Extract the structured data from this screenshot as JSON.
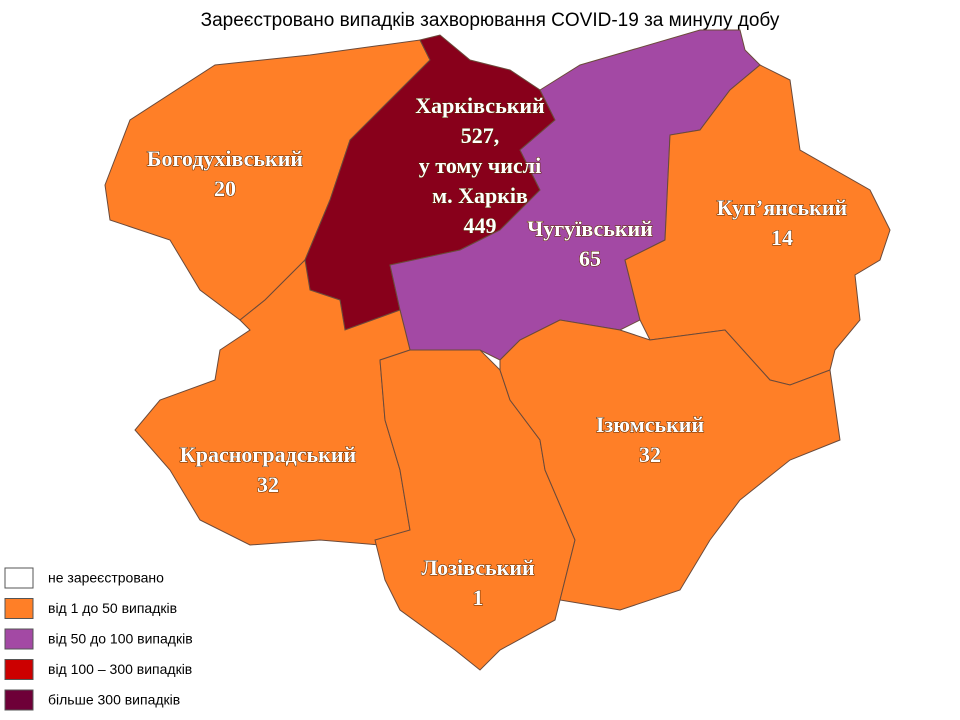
{
  "title": "Зареєстровано випадків захворювання COVID-19 за минулу добу",
  "regions": [
    {
      "name": "Богодухівський",
      "cases": 20,
      "color": "#ff7f27"
    },
    {
      "name": "Харківський",
      "cases": "527,",
      "note": "у тому числі",
      "city": "м. Харків",
      "city_cases": 449,
      "color": "#88001b"
    },
    {
      "name": "Чугуївський",
      "cases": 65,
      "color": "#a349a4"
    },
    {
      "name": "Куп’янський",
      "cases": 14,
      "color": "#ff7f27"
    },
    {
      "name": "Красноградський",
      "cases": 32,
      "color": "#ff7f27"
    },
    {
      "name": "Лозівський",
      "cases": 1,
      "color": "#ff7f27"
    },
    {
      "name": "Ізюмський",
      "cases": 32,
      "color": "#ff7f27"
    }
  ],
  "legend": [
    {
      "label": "не зареєстровано",
      "color": "#ffffff"
    },
    {
      "label": "від 1 до 50  випадків",
      "color": "#ff7f27"
    },
    {
      "label": "від 50 до 100  випадків",
      "color": "#a349a4"
    },
    {
      "label": "від 100 – 300  випадків",
      "color": "#cc0000"
    },
    {
      "label": "більше 300  випадків",
      "color": "#6e0038"
    }
  ]
}
